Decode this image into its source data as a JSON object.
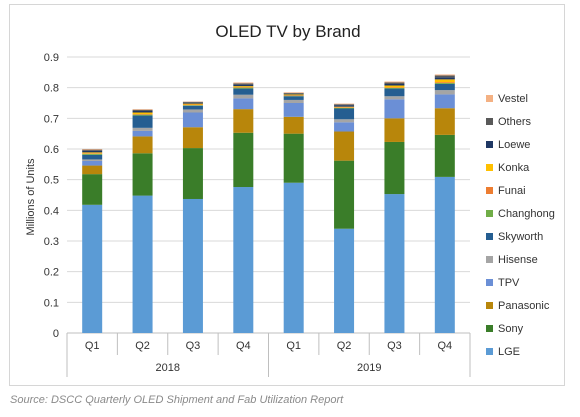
{
  "chart_data": {
    "type": "bar",
    "stacked": true,
    "title": "OLED TV by Brand",
    "ylabel": "Millions of Units",
    "ylim": [
      0,
      0.9
    ],
    "yticks": [
      "0",
      "0.1",
      "0.2",
      "0.3",
      "0.4",
      "0.5",
      "0.6",
      "0.7",
      "0.8",
      "0.9"
    ],
    "categories": [
      "Q1",
      "Q2",
      "Q3",
      "Q4",
      "Q1",
      "Q2",
      "Q3",
      "Q4"
    ],
    "groups": [
      {
        "label": "2018",
        "start": 0,
        "end": 3
      },
      {
        "label": "2019",
        "start": 4,
        "end": 7
      }
    ],
    "grid": true,
    "legend_position": "right",
    "series": [
      {
        "name": "LGE",
        "color": "#5b9bd5",
        "values": [
          0.418,
          0.448,
          0.437,
          0.476,
          0.49,
          0.34,
          0.453,
          0.509
        ]
      },
      {
        "name": "Sony",
        "color": "#3a7d29",
        "values": [
          0.1,
          0.138,
          0.166,
          0.177,
          0.16,
          0.222,
          0.17,
          0.137
        ]
      },
      {
        "name": "Panasonic",
        "color": "#b8860b",
        "values": [
          0.028,
          0.055,
          0.068,
          0.077,
          0.055,
          0.095,
          0.077,
          0.087
        ]
      },
      {
        "name": "TPV",
        "color": "#6b8fd6",
        "values": [
          0.015,
          0.018,
          0.048,
          0.035,
          0.045,
          0.03,
          0.062,
          0.045
        ]
      },
      {
        "name": "Hisense",
        "color": "#a5a5a5",
        "values": [
          0.005,
          0.01,
          0.01,
          0.012,
          0.01,
          0.01,
          0.01,
          0.014
        ]
      },
      {
        "name": "Skyworth",
        "color": "#255e91",
        "values": [
          0.015,
          0.04,
          0.012,
          0.02,
          0.012,
          0.035,
          0.025,
          0.02
        ]
      },
      {
        "name": "Changhong",
        "color": "#70ad47",
        "values": [
          0.003,
          0.003,
          0.002,
          0.003,
          0.002,
          0.002,
          0.002,
          0.003
        ]
      },
      {
        "name": "Funai",
        "color": "#ed7d31",
        "values": [
          0.002,
          0.002,
          0.002,
          0.002,
          0.002,
          0.002,
          0.002,
          0.003
        ]
      },
      {
        "name": "Konka",
        "color": "#ffc000",
        "values": [
          0.003,
          0.005,
          0.003,
          0.003,
          0.002,
          0.002,
          0.006,
          0.009
        ]
      },
      {
        "name": "Loewe",
        "color": "#1f3864",
        "values": [
          0.005,
          0.005,
          0.003,
          0.005,
          0.002,
          0.005,
          0.005,
          0.007
        ]
      },
      {
        "name": "Others",
        "color": "#595959",
        "values": [
          0.004,
          0.004,
          0.003,
          0.004,
          0.003,
          0.003,
          0.005,
          0.006
        ]
      },
      {
        "name": "Vestel",
        "color": "#f4b183",
        "values": [
          0.002,
          0.002,
          0.001,
          0.003,
          0.002,
          0.002,
          0.003,
          0.003
        ]
      }
    ],
    "legend_order": [
      "Vestel",
      "Others",
      "Loewe",
      "Konka",
      "Funai",
      "Changhong",
      "Skyworth",
      "Hisense",
      "TPV",
      "Panasonic",
      "Sony",
      "LGE"
    ],
    "colors": {
      "grid": "#d9d9d9",
      "axis": "#bfbfbf"
    }
  },
  "source": "Source: DSCC Quarterly OLED Shipment and Fab Utilization Report"
}
